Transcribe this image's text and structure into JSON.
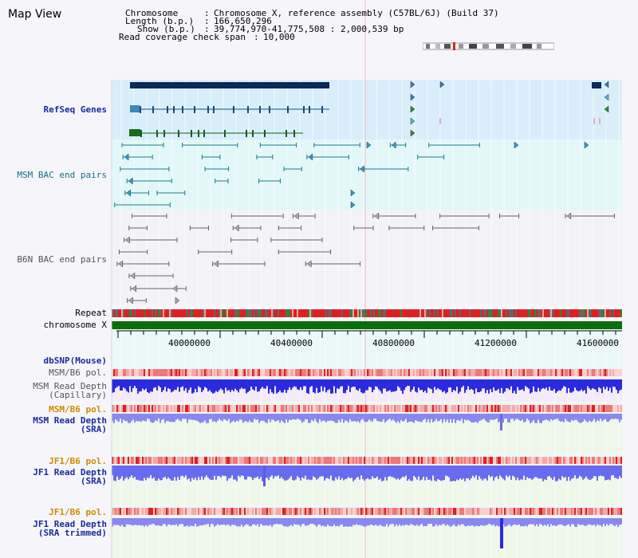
{
  "title": "Map View",
  "header": {
    "chromosome_label": "Chromosome",
    "chromosome_value": "Chromosome X, reference assembly (C57BL/6J) (Build 37)",
    "length_label": "Length (b.p.)",
    "length_value": "166,650,296",
    "show_label": "Show (b.p.)",
    "show_value": "39,774,970-41,775,508 : 2,000,539 bp",
    "coverage_label": "Read coverage check span",
    "coverage_value": "10,000"
  },
  "tracks": {
    "refseq": "RefSeq Genes",
    "msm_bac": "MSM BAC end pairs",
    "b6n_bac": "B6N BAC end pairs",
    "repeat": "Repeat",
    "chromosome": "chromosome X",
    "dbsnp": "dbSNP(Mouse)",
    "msm_pol1": "MSM/B6 pol.",
    "msm_depth_cap": "MSM Read Depth\n(Capillary)",
    "msm_pol2": "MSM/B6 pol.",
    "msm_depth_sra": "MSM Read Depth\n(SRA)",
    "jf1_pol1": "JF1/B6 pol.",
    "jf1_depth_sra": "JF1 Read Depth\n(SRA)",
    "jf1_pol2": "JF1/B6 pol.",
    "jf1_depth_trim": "JF1 Read Depth\n(SRA trimmed)"
  },
  "axis": {
    "ticks": [
      "40000000",
      "40400000",
      "40800000",
      "41200000",
      "41600000"
    ]
  },
  "colors": {
    "refseq_bg": "#d8eefa",
    "msm_bg": "#e2f8f8",
    "b6n_bg": "#f3f3f7",
    "chromosome": "#0a6e0a",
    "gene_navy": "#0a2a5a"
  }
}
